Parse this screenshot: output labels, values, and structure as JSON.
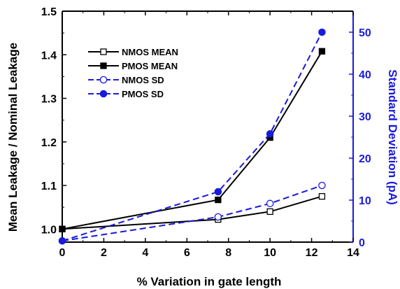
{
  "chart_data": {
    "type": "line",
    "title": "",
    "xlabel": "% Variation in gate length",
    "ylabel_left": "Mean Leakage / Nominal Leakage",
    "ylabel_right": "Standard Deviation (pA)",
    "xlim": [
      0,
      14
    ],
    "ylim_left": [
      0.97,
      1.5
    ],
    "ylim_right": [
      0,
      55
    ],
    "x_ticks": [
      0,
      2,
      4,
      6,
      8,
      10,
      12,
      14
    ],
    "y_left_ticks": [
      1.0,
      1.1,
      1.2,
      1.3,
      1.4,
      1.5
    ],
    "y_left_tick_labels": [
      "1.0",
      "1.1",
      "1.2",
      "1.3",
      "1.4",
      "1.5"
    ],
    "y_right_ticks": [
      0,
      10,
      20,
      30,
      40,
      50
    ],
    "y_right_tick_labels": [
      "0",
      "10",
      "20",
      "30",
      "40",
      "50"
    ],
    "grid": false,
    "legend_position": "top-left",
    "colors": {
      "black": "#000000",
      "blue": "#1a1adc"
    },
    "series": [
      {
        "name": "NMOS MEAN",
        "axis": "left",
        "color": "#000000",
        "dash": "solid",
        "marker": "square-open",
        "x": [
          0,
          7.5,
          10,
          12.5
        ],
        "y": [
          1.0,
          1.022,
          1.04,
          1.075
        ]
      },
      {
        "name": "PMOS MEAN",
        "axis": "left",
        "color": "#000000",
        "dash": "solid",
        "marker": "square-filled",
        "x": [
          0,
          7.5,
          10,
          12.5
        ],
        "y": [
          1.0,
          1.067,
          1.21,
          1.408
        ]
      },
      {
        "name": "NMOS SD",
        "axis": "right",
        "color": "#1a1adc",
        "dash": "dashed",
        "marker": "circle-open",
        "x": [
          0,
          7.5,
          10,
          12.5
        ],
        "y": [
          0.3,
          6.0,
          9.2,
          13.5
        ]
      },
      {
        "name": "PMOS SD",
        "axis": "right",
        "color": "#1a1adc",
        "dash": "dashed",
        "marker": "circle-filled",
        "x": [
          0,
          7.5,
          10,
          12.5
        ],
        "y": [
          0.3,
          12.0,
          25.8,
          50.0
        ]
      }
    ]
  }
}
